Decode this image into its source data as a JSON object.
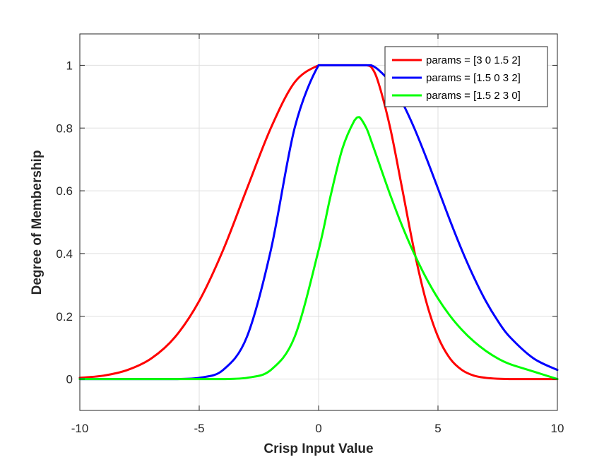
{
  "chart_data": {
    "type": "line",
    "title": "",
    "xlabel": "Crisp Input Value",
    "ylabel": "Degree of Membership",
    "xlim": [
      -10,
      10
    ],
    "ylim": [
      -0.1,
      1.1
    ],
    "xticks": [
      -10,
      -5,
      0,
      5,
      10
    ],
    "xtick_labels": [
      "-10",
      "-5",
      "0",
      "5",
      "10"
    ],
    "yticks": [
      0,
      0.2,
      0.4,
      0.6,
      0.8,
      1
    ],
    "ytick_labels": [
      "0",
      "0.2",
      "0.4",
      "0.6",
      "0.8",
      "1"
    ],
    "grid": true,
    "legend_position": "top-right",
    "x": [
      -10,
      -9,
      -8,
      -7,
      -6,
      -5,
      -4,
      -3,
      -2,
      -1,
      0,
      0.5,
      1,
      1.5,
      1.7,
      2,
      2.2,
      2.5,
      3,
      3.5,
      4,
      4.5,
      5,
      5.5,
      6,
      6.5,
      7,
      7.5,
      8,
      9,
      10
    ],
    "series": [
      {
        "name": "params = [3 0 1.5 2]",
        "color": "#ff0000",
        "values": [
          0.004,
          0.011,
          0.029,
          0.066,
          0.135,
          0.249,
          0.411,
          0.607,
          0.8,
          0.946,
          1,
          1,
          1,
          1,
          1,
          1,
          0.995,
          0.946,
          0.8,
          0.607,
          0.411,
          0.249,
          0.135,
          0.066,
          0.029,
          0.011,
          0.004,
          0.001,
          0,
          0,
          0
        ]
      },
      {
        "name": "params = [1.5 0 3 2]",
        "color": "#0000ff",
        "values": [
          0,
          0,
          0,
          0,
          0,
          0.004,
          0.029,
          0.135,
          0.411,
          0.801,
          1,
          1,
          1,
          1,
          1,
          1,
          1,
          0.986,
          0.946,
          0.882,
          0.801,
          0.707,
          0.607,
          0.506,
          0.411,
          0.325,
          0.249,
          0.186,
          0.135,
          0.066,
          0.029
        ]
      },
      {
        "name": "params = [1.5 2 3 0]",
        "color": "#00ff00",
        "values": [
          0,
          0,
          0,
          0,
          0,
          0,
          0,
          0.004,
          0.029,
          0.135,
          0.411,
          0.583,
          0.735,
          0.824,
          0.835,
          0.8,
          0.76,
          0.695,
          0.587,
          0.488,
          0.4,
          0.323,
          0.257,
          0.202,
          0.157,
          0.12,
          0.09,
          0.066,
          0.048,
          0.024,
          0
        ]
      }
    ]
  }
}
